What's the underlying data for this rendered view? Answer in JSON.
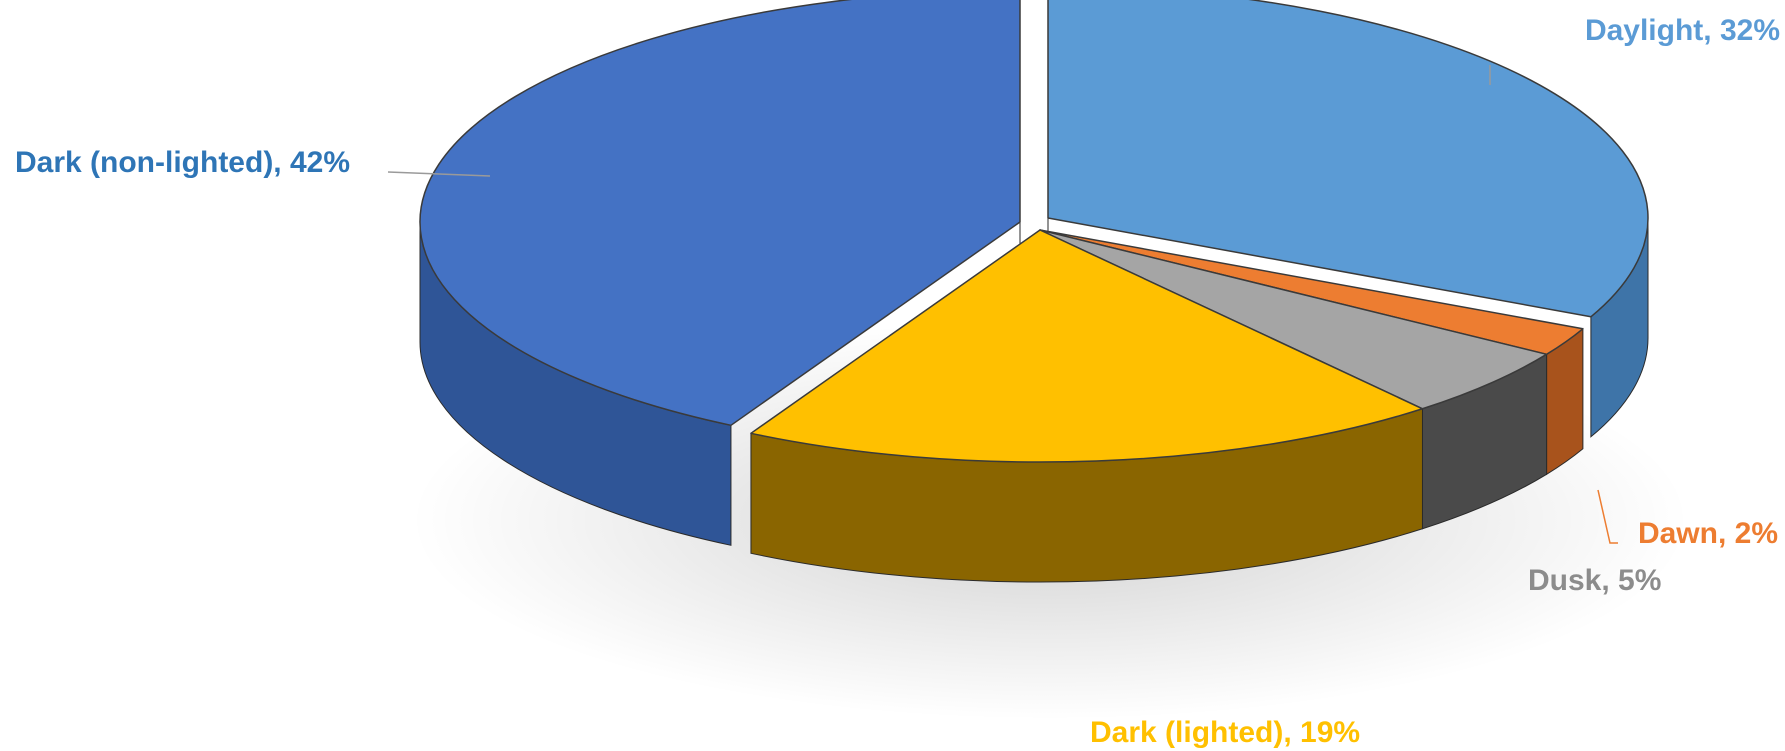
{
  "chart_data": {
    "type": "pie",
    "title": "",
    "style": "3d-exploded",
    "slices": [
      {
        "label": "Daylight",
        "value": 32,
        "display": "Daylight, 32%",
        "color": "#5B9BD5",
        "side_color": "#3E74A8"
      },
      {
        "label": "Dawn",
        "value": 2,
        "display": "Dawn, 2%",
        "color": "#ED7D31",
        "side_color": "#A8531C"
      },
      {
        "label": "Dusk",
        "value": 5,
        "display": "Dusk, 5%",
        "color": "#A5A5A5",
        "side_color": "#4A4A4A"
      },
      {
        "label": "Dark (lighted)",
        "value": 19,
        "display": "Dark (lighted), 19%",
        "color": "#FFC000",
        "side_color": "#8A6500"
      },
      {
        "label": "Dark (non-lighted)",
        "value": 42,
        "display": "Dark (non-lighted), 42%",
        "color": "#4472C4",
        "side_color": "#2F5597"
      }
    ],
    "label_colors": {
      "Daylight": "#5B9BD5",
      "Dawn": "#ED7D31",
      "Dusk": "#8C8C8C",
      "Dark (lighted)": "#FFC000",
      "Dark (non-lighted)": "#2E75B6"
    }
  }
}
